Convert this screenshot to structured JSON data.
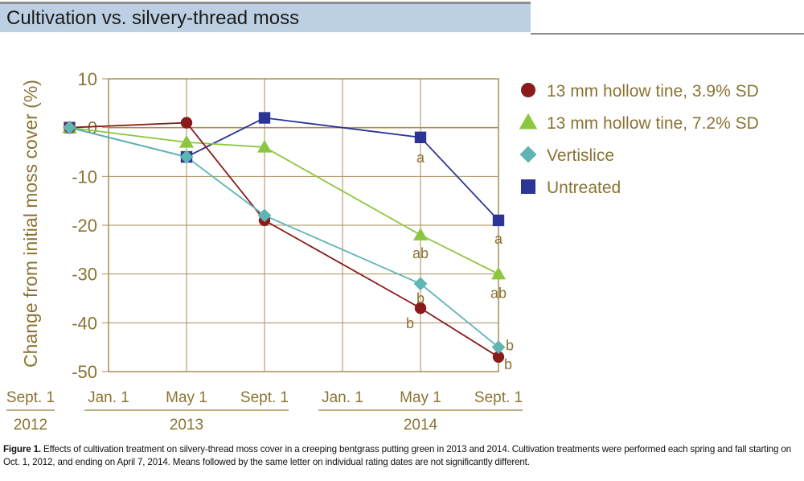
{
  "header": {
    "title": "Cultivation vs. silvery-thread moss"
  },
  "chart_data": {
    "type": "line",
    "ylabel": "Change from initial moss cover (%)",
    "ylim": [
      -50,
      10
    ],
    "yticks": [
      10,
      0,
      -10,
      -20,
      -30,
      -40,
      -50
    ],
    "grid": true,
    "legend_position": "right",
    "x_tick_labels": [
      "Sept. 1",
      "Jan. 1",
      "May 1",
      "Sept. 1",
      "Jan. 1",
      "May 1",
      "Sept. 1"
    ],
    "year_groups": [
      {
        "label": "2012",
        "start": 0,
        "end": 0
      },
      {
        "label": "2013",
        "start": 1,
        "end": 3
      },
      {
        "label": "2014",
        "start": 4,
        "end": 6
      }
    ],
    "x_points": [
      "Oct. 2012",
      "May 2013",
      "Sept. 2013",
      "May 2014",
      "Sept. 2014"
    ],
    "x_positions": [
      0.5,
      2.0,
      3.0,
      5.0,
      6.0
    ],
    "series": [
      {
        "name": "13 mm hollow tine, 3.9% SD",
        "marker": "circle",
        "color": "#8b1a1a",
        "values": [
          0,
          1,
          -19,
          -37,
          -47
        ],
        "labels": [
          "",
          "",
          "",
          "b",
          "b"
        ]
      },
      {
        "name": "13 mm hollow tine, 7.2% SD",
        "marker": "triangle",
        "color": "#8cc63f",
        "values": [
          0,
          -3,
          -4,
          -22,
          -30
        ],
        "labels": [
          "",
          "",
          "",
          "ab",
          "ab"
        ]
      },
      {
        "name": "Vertislice",
        "marker": "diamond",
        "color": "#5fb4b4",
        "values": [
          0,
          -6,
          -18,
          -32,
          -45
        ],
        "labels": [
          "",
          "",
          "",
          "b",
          "b"
        ]
      },
      {
        "name": "Untreated",
        "marker": "square",
        "color": "#2b3595",
        "values": [
          0,
          -6,
          2,
          -2,
          -19
        ],
        "labels": [
          "",
          "",
          "",
          "a",
          "a"
        ]
      }
    ]
  },
  "caption": {
    "label": "Figure 1.",
    "text": " Effects of cultivation treatment on silvery-thread moss cover in a creeping bentgrass putting green in 2013 and 2014. Cultivation treatments were performed each spring and fall starting on Oct. 1, 2012, and ending on April 7, 2014. Means followed by the same letter on individual rating dates are not significantly different."
  },
  "colors": {
    "axis": "#a88e55",
    "text_gold": "#8a7333",
    "header_band": "#bdd0e3"
  }
}
